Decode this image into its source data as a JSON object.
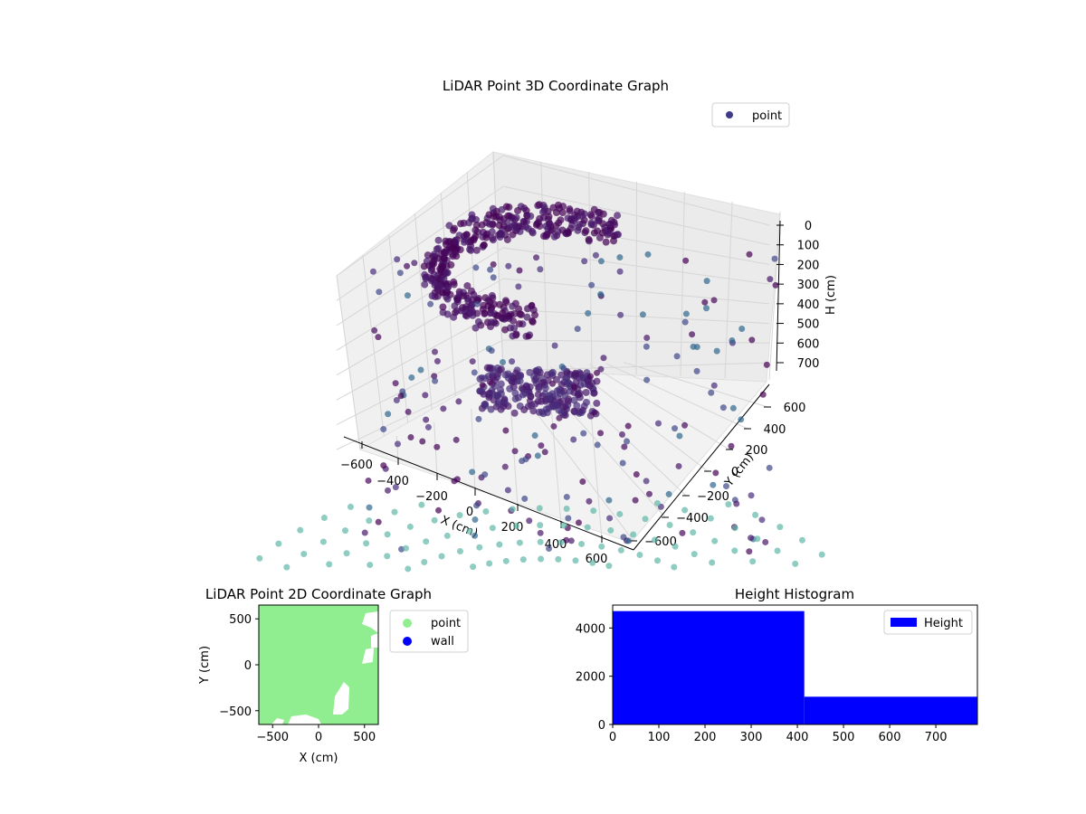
{
  "chart_data": [
    {
      "type": "scatter",
      "projection": "3d",
      "title": "LiDAR Point 3D Coordinate Graph",
      "xlabel": "X (cm)",
      "ylabel": "Y (cm)",
      "zlabel": "H (cm)",
      "xticks": [
        "−600",
        "−400",
        "−200",
        "0",
        "200",
        "400",
        "600"
      ],
      "yticks": [
        "−600",
        "−400",
        "−200",
        "0",
        "200",
        "400",
        "600"
      ],
      "zticks": [
        "0",
        "100",
        "200",
        "300",
        "400",
        "500",
        "600",
        "700"
      ],
      "xlim": [
        -700,
        700
      ],
      "ylim": [
        -700,
        700
      ],
      "zlim": [
        750,
        0
      ],
      "grid": true,
      "legend": {
        "placement": "top-right",
        "entries": [
          {
            "name": "point",
            "color": "#3e3a86"
          }
        ]
      },
      "colormap": "viridis",
      "series": [
        {
          "name": "point",
          "description_values": "ring of points at H≈100–200 around center, dense cluster near floor, sparse scatter; floor points at H≈700 shown in teal",
          "sample_points": [
            {
              "x": -300,
              "y": 300,
              "h": 150
            },
            {
              "x": -100,
              "y": 400,
              "h": 120
            },
            {
              "x": 100,
              "y": 300,
              "h": 200
            },
            {
              "x": -300,
              "y": -100,
              "h": 200
            },
            {
              "x": -200,
              "y": 200,
              "h": 650
            },
            {
              "x": 0,
              "y": 100,
              "h": 660
            },
            {
              "x": 300,
              "y": -300,
              "h": 700
            }
          ]
        }
      ]
    },
    {
      "type": "scatter",
      "title": "LiDAR Point 2D Coordinate Graph",
      "xlabel": "X (cm)",
      "ylabel": "Y (cm)",
      "xticks": [
        "−500",
        "0",
        "500"
      ],
      "yticks": [
        "500",
        "0",
        "−500"
      ],
      "xlim": [
        -650,
        650
      ],
      "ylim": [
        -650,
        650
      ],
      "legend": {
        "placement": "outside-right",
        "entries": [
          {
            "name": "point",
            "color": "#90ee90"
          },
          {
            "name": "wall",
            "color": "#0000ff"
          }
        ]
      }
    },
    {
      "type": "bar",
      "title": "Height Histogram",
      "xticks": [
        "0",
        "100",
        "200",
        "300",
        "400",
        "500",
        "600",
        "700"
      ],
      "yticks": [
        "0",
        "2000",
        "4000"
      ],
      "xlim": [
        0,
        790
      ],
      "ylim": [
        0,
        4950
      ],
      "bins": [
        {
          "x0": 0,
          "x1": 415,
          "count": 4700
        },
        {
          "x0": 415,
          "x1": 790,
          "count": 1150
        }
      ],
      "legend": {
        "placement": "top-right",
        "entries": [
          {
            "name": "Height",
            "color": "#0000ff"
          }
        ]
      }
    }
  ]
}
